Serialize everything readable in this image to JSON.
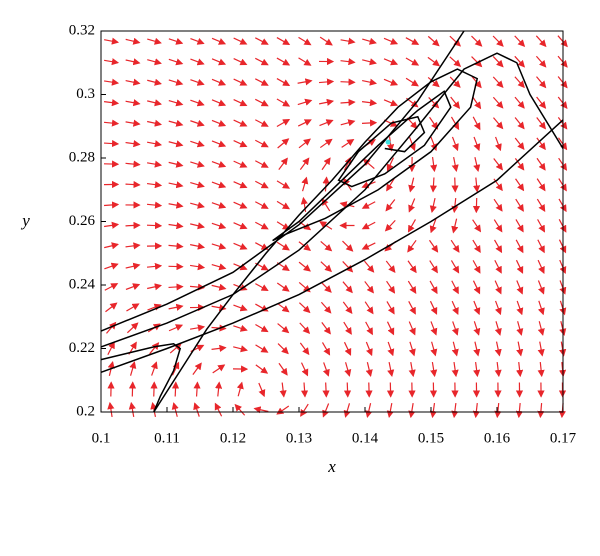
{
  "chart_data": {
    "type": "phase-portrait",
    "x_label": "x",
    "y_label": "y",
    "xlim": [
      0.1,
      0.17
    ],
    "ylim": [
      0.2,
      0.32
    ],
    "xticks": [
      0.1,
      0.11,
      0.12,
      0.13,
      0.14,
      0.15,
      0.16,
      0.17
    ],
    "yticks": [
      0.2,
      0.22,
      0.24,
      0.26,
      0.28,
      0.3,
      0.32
    ],
    "field_color": "#e8262b",
    "series": [
      {
        "color": "#000000",
        "x": [
          0.1,
          0.11,
          0.12,
          0.13,
          0.14,
          0.148,
          0.155
        ],
        "y": [
          0.2255,
          0.234,
          0.244,
          0.259,
          0.278,
          0.298,
          0.32
        ]
      },
      {
        "color": "#000000",
        "x": [
          0.1,
          0.11,
          0.12,
          0.13,
          0.14,
          0.148,
          0.155,
          0.16,
          0.163,
          0.165,
          0.17
        ],
        "y": [
          0.2205,
          0.228,
          0.237,
          0.251,
          0.27,
          0.29,
          0.308,
          0.313,
          0.31,
          0.3,
          0.283
        ]
      },
      {
        "color": "#000000",
        "x": [
          0.1,
          0.11,
          0.12,
          0.13,
          0.14,
          0.15,
          0.16,
          0.17
        ],
        "y": [
          0.2125,
          0.22,
          0.228,
          0.237,
          0.248,
          0.26,
          0.273,
          0.292
        ]
      },
      {
        "color": "#000000",
        "x": [
          0.108,
          0.112,
          0.116,
          0.12,
          0.125,
          0.13,
          0.135,
          0.14,
          0.145,
          0.15,
          0.154,
          0.157,
          0.156,
          0.15,
          0.142,
          0.134,
          0.128,
          0.126,
          0.13,
          0.136,
          0.142,
          0.148,
          0.152,
          0.153,
          0.149,
          0.143,
          0.138,
          0.136,
          0.139,
          0.144,
          0.148,
          0.149,
          0.146,
          0.143
        ],
        "y": [
          0.2,
          0.213,
          0.226,
          0.237,
          0.25,
          0.262,
          0.273,
          0.285,
          0.296,
          0.304,
          0.308,
          0.305,
          0.296,
          0.282,
          0.27,
          0.261,
          0.256,
          0.254,
          0.26,
          0.272,
          0.284,
          0.295,
          0.301,
          0.296,
          0.284,
          0.275,
          0.271,
          0.273,
          0.282,
          0.291,
          0.293,
          0.288,
          0.282,
          0.283
        ]
      },
      {
        "color": "#000000",
        "x": [
          0.1,
          0.104,
          0.108,
          0.111,
          0.112,
          0.111,
          0.109,
          0.108
        ],
        "y": [
          0.2165,
          0.2185,
          0.2205,
          0.2215,
          0.22,
          0.213,
          0.205,
          0.2
        ]
      }
    ],
    "points": [
      {
        "x": 0.1435,
        "y": 0.285,
        "color": "#3ee0e0"
      }
    ]
  }
}
